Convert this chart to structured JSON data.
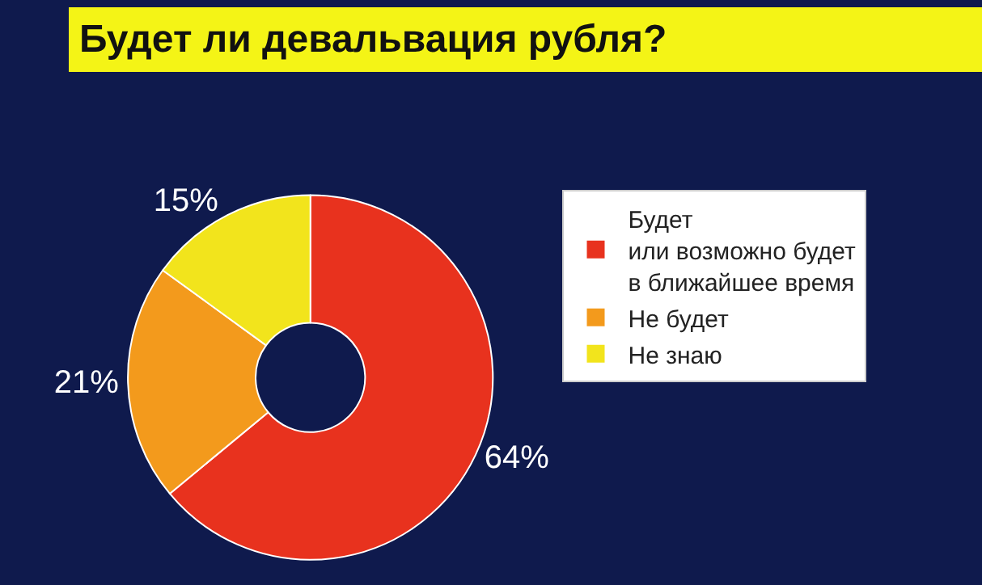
{
  "chart_data": {
    "type": "donut",
    "title": "Будет ли девальвация рубля?",
    "categories": [
      "Будет\nили возможно будет\nв ближайшее время",
      "Не будет",
      "Не знаю"
    ],
    "values": [
      64,
      21,
      15
    ],
    "value_labels": [
      "64%",
      "21%",
      "15%"
    ],
    "colors": [
      "#e8321e",
      "#f39a1c",
      "#f2e41c"
    ],
    "legend": "right"
  }
}
